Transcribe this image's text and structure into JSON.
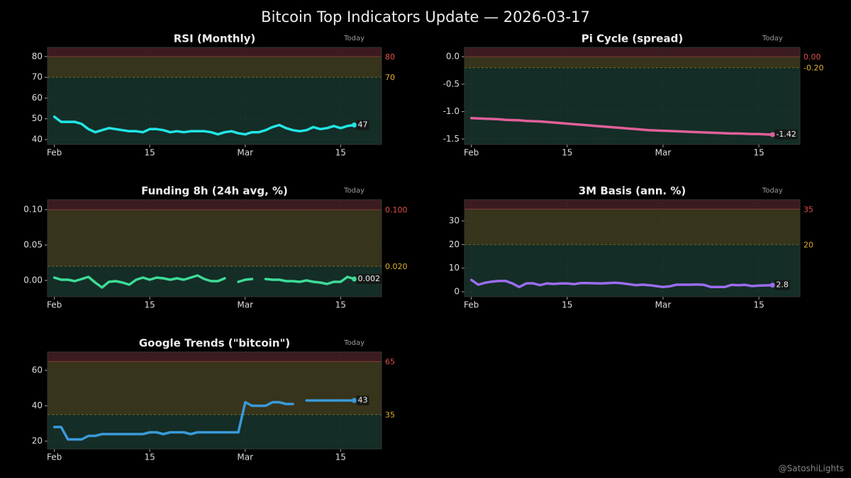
{
  "title": "Bitcoin Top Indicators Update — 2026-03-17",
  "watermark": "@SatoshiLights",
  "chart_data": [
    {
      "type": "line",
      "title": "RSI (Monthly)",
      "annotation": "Today",
      "x": [
        "2026-02-01",
        "2026-02-02",
        "2026-02-03",
        "2026-02-04",
        "2026-02-05",
        "2026-02-06",
        "2026-02-07",
        "2026-02-08",
        "2026-02-09",
        "2026-02-10",
        "2026-02-11",
        "2026-02-12",
        "2026-02-13",
        "2026-02-14",
        "2026-02-15",
        "2026-02-16",
        "2026-02-17",
        "2026-02-18",
        "2026-02-19",
        "2026-02-20",
        "2026-02-21",
        "2026-02-22",
        "2026-02-23",
        "2026-02-24",
        "2026-02-25",
        "2026-02-26",
        "2026-02-27",
        "2026-02-28",
        "2026-03-01",
        "2026-03-02",
        "2026-03-03",
        "2026-03-04",
        "2026-03-05",
        "2026-03-06",
        "2026-03-07",
        "2026-03-08",
        "2026-03-09",
        "2026-03-10",
        "2026-03-11",
        "2026-03-12",
        "2026-03-13",
        "2026-03-14",
        "2026-03-15",
        "2026-03-16",
        "2026-03-17"
      ],
      "series": [
        {
          "color": "#22e5e5",
          "values": [
            51,
            48.5,
            48.5,
            48.5,
            47.5,
            45,
            43.5,
            44.5,
            45.5,
            45,
            44.5,
            44,
            44,
            43.5,
            45,
            45,
            44.5,
            43.5,
            44,
            43.5,
            44,
            44,
            44,
            43.5,
            42.5,
            43.5,
            44,
            43,
            42.5,
            43.5,
            43.5,
            44.5,
            46,
            47,
            45.5,
            44.5,
            44,
            44.5,
            46,
            45,
            45.5,
            46.5,
            45.5,
            46.5,
            47
          ]
        }
      ],
      "thresholds": [
        {
          "value": 80,
          "color": "#e05050"
        },
        {
          "value": 70,
          "color": "#e0b030"
        }
      ],
      "xlim": [
        "2026-01-31",
        "2026-03-21"
      ],
      "xticks": [
        {
          "value": "2026-02-01",
          "label": "Feb"
        },
        {
          "value": "2026-02-15",
          "label": "15"
        },
        {
          "value": "2026-03-01",
          "label": "Mar"
        },
        {
          "value": "2026-03-15",
          "label": "15"
        }
      ],
      "ylim": [
        37.6,
        84.4
      ],
      "yticks": [
        40,
        50,
        60,
        70,
        80
      ],
      "grid": true
    },
    {
      "type": "line",
      "title": "Pi Cycle (spread)",
      "annotation": "Today",
      "x": [
        "2026-02-01",
        "2026-02-02",
        "2026-02-03",
        "2026-02-04",
        "2026-02-05",
        "2026-02-06",
        "2026-02-07",
        "2026-02-08",
        "2026-02-09",
        "2026-02-10",
        "2026-02-11",
        "2026-02-12",
        "2026-02-13",
        "2026-02-14",
        "2026-02-15",
        "2026-02-16",
        "2026-02-17",
        "2026-02-18",
        "2026-02-19",
        "2026-02-20",
        "2026-02-21",
        "2026-02-22",
        "2026-02-23",
        "2026-02-24",
        "2026-02-25",
        "2026-02-26",
        "2026-02-27",
        "2026-02-28",
        "2026-03-01",
        "2026-03-02",
        "2026-03-03",
        "2026-03-04",
        "2026-03-05",
        "2026-03-06",
        "2026-03-07",
        "2026-03-08",
        "2026-03-09",
        "2026-03-10",
        "2026-03-11",
        "2026-03-12",
        "2026-03-13",
        "2026-03-14",
        "2026-03-15",
        "2026-03-16",
        "2026-03-17"
      ],
      "series": [
        {
          "color": "#e0609a",
          "values": [
            -1.12,
            -1.125,
            -1.13,
            -1.135,
            -1.14,
            -1.15,
            -1.155,
            -1.16,
            -1.17,
            -1.175,
            -1.18,
            -1.19,
            -1.2,
            -1.21,
            -1.22,
            -1.23,
            -1.24,
            -1.25,
            -1.26,
            -1.27,
            -1.28,
            -1.29,
            -1.3,
            -1.31,
            -1.32,
            -1.33,
            -1.34,
            -1.345,
            -1.35,
            -1.355,
            -1.36,
            -1.365,
            -1.37,
            -1.375,
            -1.38,
            -1.385,
            -1.39,
            -1.395,
            -1.4,
            -1.4,
            -1.405,
            -1.41,
            -1.41,
            -1.415,
            -1.42
          ]
        }
      ],
      "thresholds": [
        {
          "value": 0,
          "label": "0.00",
          "color": "#e05050"
        },
        {
          "value": -0.2,
          "label": "-0.20",
          "color": "#e0b030"
        }
      ],
      "xlim": [
        "2026-01-31",
        "2026-03-21"
      ],
      "xticks": [
        {
          "value": "2026-02-01",
          "label": "Feb"
        },
        {
          "value": "2026-02-15",
          "label": "15"
        },
        {
          "value": "2026-03-01",
          "label": "Mar"
        },
        {
          "value": "2026-03-15",
          "label": "15"
        }
      ],
      "ylim": [
        -1.6,
        0.17
      ],
      "yticks": [
        {
          "value": -1.5,
          "label": "-1.5"
        },
        {
          "value": -1,
          "label": "-1.0"
        },
        -0.5,
        {
          "value": 0,
          "label": "0.0"
        }
      ],
      "grid": true
    },
    {
      "type": "line",
      "title": "Funding 8h (24h avg, %)",
      "annotation": "Today",
      "x": [
        "2026-02-01",
        "2026-02-02",
        "2026-02-03",
        "2026-02-04",
        "2026-02-05",
        "2026-02-06",
        "2026-02-07",
        "2026-02-08",
        "2026-02-09",
        "2026-02-10",
        "2026-02-11",
        "2026-02-12",
        "2026-02-13",
        "2026-02-14",
        "2026-02-15",
        "2026-02-16",
        "2026-02-17",
        "2026-02-18",
        "2026-02-19",
        "2026-02-20",
        "2026-02-21",
        "2026-02-22",
        "2026-02-23",
        "2026-02-24",
        "2026-02-25",
        "2026-02-26",
        "2026-02-27",
        "2026-02-28",
        "2026-03-01",
        "2026-03-02",
        "2026-03-03",
        "2026-03-04",
        "2026-03-05",
        "2026-03-06",
        "2026-03-07",
        "2026-03-08",
        "2026-03-09",
        "2026-03-10",
        "2026-03-11",
        "2026-03-12",
        "2026-03-13",
        "2026-03-14",
        "2026-03-15",
        "2026-03-16",
        "2026-03-17"
      ],
      "series": [
        {
          "color": "#3ddc97",
          "values": [
            0.004,
            0.001,
            0.001,
            -0.001,
            0.002,
            0.005,
            -0.003,
            -0.01,
            -0.002,
            -0.001,
            -0.003,
            -0.006,
            0.001,
            0.004,
            0.001,
            0.004,
            0.003,
            0.001,
            0.003,
            0.001,
            0.004,
            0.007,
            0.002,
            -0.001,
            -0.001,
            0.003,
            null,
            -0.002,
            0.001,
            0.002,
            null,
            0.002,
            0.001,
            0.001,
            -0.001,
            -0.001,
            -0.002,
            0,
            -0.002,
            -0.003,
            -0.005,
            -0.002,
            -0.002,
            0.005,
            0.002
          ]
        }
      ],
      "thresholds": [
        {
          "value": 0.1,
          "label": "0.100",
          "color": "#e05050"
        },
        {
          "value": 0.02,
          "label": "0.020",
          "color": "#e0b030"
        }
      ],
      "xlim": [
        "2026-01-31",
        "2026-03-21"
      ],
      "xticks": [
        {
          "value": "2026-02-01",
          "label": "Feb"
        },
        {
          "value": "2026-02-15",
          "label": "15"
        },
        {
          "value": "2026-03-01",
          "label": "Mar"
        },
        {
          "value": "2026-03-15",
          "label": "15"
        }
      ],
      "ylim": [
        -0.023,
        0.114
      ],
      "yticks": [
        {
          "value": 0,
          "label": "0.00"
        },
        0.05,
        {
          "value": 0.1,
          "label": "0.10"
        }
      ],
      "grid": true
    },
    {
      "type": "line",
      "title": "3M Basis (ann. %)",
      "annotation": "Today",
      "x": [
        "2026-02-01",
        "2026-02-02",
        "2026-02-03",
        "2026-02-04",
        "2026-02-05",
        "2026-02-06",
        "2026-02-07",
        "2026-02-08",
        "2026-02-09",
        "2026-02-10",
        "2026-02-11",
        "2026-02-12",
        "2026-02-13",
        "2026-02-14",
        "2026-02-15",
        "2026-02-16",
        "2026-02-17",
        "2026-02-18",
        "2026-02-19",
        "2026-02-20",
        "2026-02-21",
        "2026-02-22",
        "2026-02-23",
        "2026-02-24",
        "2026-02-25",
        "2026-02-26",
        "2026-02-27",
        "2026-02-28",
        "2026-03-01",
        "2026-03-02",
        "2026-03-03",
        "2026-03-04",
        "2026-03-05",
        "2026-03-06",
        "2026-03-07",
        "2026-03-08",
        "2026-03-09",
        "2026-03-10",
        "2026-03-11",
        "2026-03-12",
        "2026-03-13",
        "2026-03-14",
        "2026-03-15",
        "2026-03-16",
        "2026-03-17"
      ],
      "series": [
        {
          "color": "#9b6cf0",
          "values": [
            5,
            3,
            3.8,
            4.3,
            4.6,
            4.6,
            3.5,
            2,
            3.5,
            3.6,
            2.8,
            3.5,
            3.3,
            3.5,
            3.5,
            3.2,
            3.7,
            3.7,
            3.6,
            3.5,
            3.7,
            3.8,
            3.6,
            3.2,
            2.8,
            3,
            2.8,
            2.4,
            2,
            2.3,
            3,
            3,
            3,
            3.1,
            2.9,
            2,
            2,
            2,
            2.9,
            2.8,
            2.9,
            2.4,
            2.6,
            2.7,
            2.8
          ]
        }
      ],
      "thresholds": [
        {
          "value": 35,
          "color": "#e05050"
        },
        {
          "value": 20,
          "color": "#e0b030"
        }
      ],
      "xlim": [
        "2026-01-31",
        "2026-03-21"
      ],
      "xticks": [
        {
          "value": "2026-02-01",
          "label": "Feb"
        },
        {
          "value": "2026-02-15",
          "label": "15"
        },
        {
          "value": "2026-03-01",
          "label": "Mar"
        },
        {
          "value": "2026-03-15",
          "label": "15"
        }
      ],
      "ylim": [
        -2.1,
        39
      ],
      "yticks": [
        0,
        10,
        20,
        30
      ],
      "grid": true
    },
    {
      "type": "line",
      "title": "Google Trends (\"bitcoin\")",
      "annotation": "Today",
      "x": [
        "2026-02-01",
        "2026-02-02",
        "2026-02-03",
        "2026-02-04",
        "2026-02-05",
        "2026-02-06",
        "2026-02-07",
        "2026-02-08",
        "2026-02-09",
        "2026-02-10",
        "2026-02-11",
        "2026-02-12",
        "2026-02-13",
        "2026-02-14",
        "2026-02-15",
        "2026-02-16",
        "2026-02-17",
        "2026-02-18",
        "2026-02-19",
        "2026-02-20",
        "2026-02-21",
        "2026-02-22",
        "2026-02-23",
        "2026-02-24",
        "2026-02-25",
        "2026-02-26",
        "2026-02-27",
        "2026-02-28",
        "2026-03-01",
        "2026-03-02",
        "2026-03-03",
        "2026-03-04",
        "2026-03-05",
        "2026-03-06",
        "2026-03-07",
        "2026-03-08",
        "2026-03-09",
        "2026-03-10",
        "2026-03-11",
        "2026-03-12",
        "2026-03-13",
        "2026-03-14",
        "2026-03-15",
        "2026-03-16",
        "2026-03-17"
      ],
      "series": [
        {
          "color": "#3a9ad9",
          "values": [
            28,
            28,
            21,
            21,
            21,
            23,
            23,
            24,
            24,
            24,
            24,
            24,
            24,
            24,
            25,
            25,
            24,
            25,
            25,
            25,
            24,
            25,
            25,
            25,
            25,
            25,
            25,
            25,
            42,
            40,
            40,
            40,
            42,
            42,
            41,
            41,
            null,
            43,
            43,
            43,
            43,
            43,
            43,
            43,
            43
          ]
        }
      ],
      "thresholds": [
        {
          "value": 65,
          "color": "#e05050"
        },
        {
          "value": 35,
          "color": "#e0b030"
        }
      ],
      "xlim": [
        "2026-01-31",
        "2026-03-21"
      ],
      "xticks": [
        {
          "value": "2026-02-01",
          "label": "Feb"
        },
        {
          "value": "2026-02-15",
          "label": "15"
        },
        {
          "value": "2026-03-01",
          "label": "Mar"
        },
        {
          "value": "2026-03-15",
          "label": "15"
        }
      ],
      "ylim": [
        15.6,
        70.4
      ],
      "yticks": [
        20,
        40,
        60
      ],
      "grid": true
    }
  ]
}
